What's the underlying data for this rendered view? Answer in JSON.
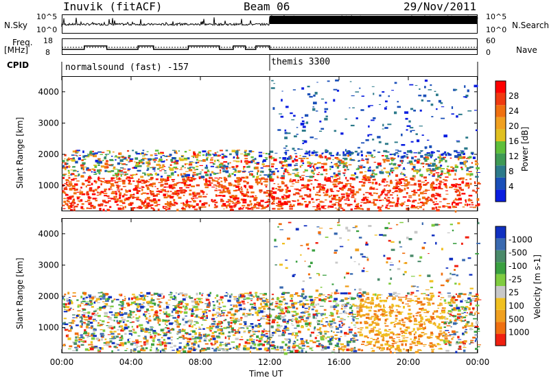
{
  "header": {
    "site": "Inuvik (fitACF)",
    "beam": "Beam 06",
    "date": "29/Nov/2011"
  },
  "sky": {
    "label": "N.Sky",
    "ytop": "10^5",
    "ybot": "10^0",
    "rlabel": "N.Search",
    "rtop": "10^5",
    "rbot": "10^0"
  },
  "freq": {
    "label_1": "Freq.",
    "label_2": "[MHz]",
    "ytop": "18",
    "ybot": "8",
    "rlabel": "Nave",
    "rtop": "60",
    "rbot": "0"
  },
  "cpid": {
    "label": "CPID",
    "mode_a": "normalsound (fast) -157",
    "mode_b": "themis 3300"
  },
  "chart_data": [
    {
      "type": "heatmap",
      "title": "",
      "xlabel": "Time UT",
      "ylabel": "Slant Range [km]",
      "xticks": [
        "00:00",
        "04:00",
        "08:00",
        "12:00",
        "16:00",
        "20:00",
        "00:00"
      ],
      "yticks": [
        "1000",
        "2000",
        "3000",
        "4000"
      ],
      "ylim": [
        180,
        4500
      ],
      "colorbar": {
        "label": "Power [dB]",
        "ticks": [
          "4",
          "8",
          "12",
          "16",
          "20",
          "24",
          "28"
        ],
        "colors": [
          "#0a1ee0",
          "#1a4fb8",
          "#2c7a8a",
          "#3f9a55",
          "#5fbf3a",
          "#e0c020",
          "#f0a020",
          "#f07010",
          "#f03a10",
          "#ff0000"
        ]
      },
      "bands": [
        {
          "t0": 0.0,
          "t1": 12.0,
          "r0": 200,
          "r1": 2100,
          "level": "high"
        },
        {
          "t0": 12.0,
          "t1": 24.0,
          "r0": 200,
          "r1": 2300,
          "level": "mixed"
        }
      ]
    },
    {
      "type": "heatmap",
      "title": "",
      "xlabel": "Time UT",
      "ylabel": "Slant Range [km]",
      "xticks": [
        "00:00",
        "04:00",
        "08:00",
        "12:00",
        "16:00",
        "20:00",
        "00:00"
      ],
      "yticks": [
        "1000",
        "2000",
        "3000",
        "4000"
      ],
      "ylim": [
        180,
        4500
      ],
      "colorbar": {
        "label": "Velocity [m s-1]",
        "ticks": [
          "1000",
          "500",
          "100",
          "25",
          "-25",
          "-100",
          "-500",
          "-1000"
        ],
        "colors": [
          "#1030c0",
          "#3a6ab0",
          "#4a8a6a",
          "#3aa040",
          "#80cc40",
          "#c8c8c8",
          "#f0c020",
          "#f0a020",
          "#f07010",
          "#f02010"
        ]
      }
    }
  ],
  "xaxis": {
    "label": "Time UT"
  }
}
